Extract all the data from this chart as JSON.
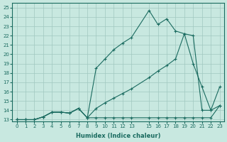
{
  "xlabel": "Humidex (Indice chaleur)",
  "bg_color": "#c8e8e0",
  "grid_color": "#a0c8c0",
  "line_color": "#1a6b60",
  "xlim": [
    -0.5,
    23.5
  ],
  "ylim": [
    12.8,
    25.5
  ],
  "xticks": [
    0,
    1,
    2,
    3,
    4,
    5,
    6,
    7,
    8,
    9,
    10,
    11,
    12,
    13,
    15,
    16,
    17,
    18,
    19,
    20,
    21,
    22,
    23
  ],
  "yticks": [
    13,
    14,
    15,
    16,
    17,
    18,
    19,
    20,
    21,
    22,
    23,
    24,
    25
  ],
  "line1_x": [
    0,
    1,
    2,
    3,
    4,
    5,
    6,
    7,
    8,
    9,
    10,
    11,
    12,
    13,
    15,
    16,
    17,
    18,
    19,
    20,
    21,
    22,
    23
  ],
  "line1_y": [
    13,
    13,
    13,
    13.3,
    13.8,
    13.8,
    13.7,
    14.2,
    13.2,
    18.5,
    19.5,
    20.5,
    21.2,
    21.8,
    24.7,
    23.2,
    23.8,
    22.5,
    22.2,
    19.0,
    16.5,
    14,
    16.5
  ],
  "line2_x": [
    0,
    1,
    2,
    3,
    4,
    5,
    6,
    7,
    8,
    9,
    10,
    11,
    12,
    13,
    15,
    16,
    17,
    18,
    19,
    20,
    21,
    22,
    23
  ],
  "line2_y": [
    13,
    13,
    13,
    13.3,
    13.8,
    13.8,
    13.7,
    14.2,
    13.2,
    14.2,
    14.8,
    15.3,
    15.8,
    16.3,
    17.5,
    18.2,
    18.8,
    19.5,
    22.2,
    22.0,
    14,
    14,
    14.5
  ],
  "line3_x": [
    0,
    1,
    2,
    3,
    4,
    5,
    6,
    7,
    8,
    9,
    10,
    11,
    12,
    13,
    15,
    16,
    17,
    18,
    19,
    20,
    21,
    22,
    23
  ],
  "line3_y": [
    13,
    13,
    13,
    13.3,
    13.8,
    13.8,
    13.7,
    14.2,
    13.2,
    13.2,
    13.2,
    13.2,
    13.2,
    13.2,
    13.2,
    13.2,
    13.2,
    13.2,
    13.2,
    13.2,
    13.2,
    13.2,
    14.5
  ]
}
